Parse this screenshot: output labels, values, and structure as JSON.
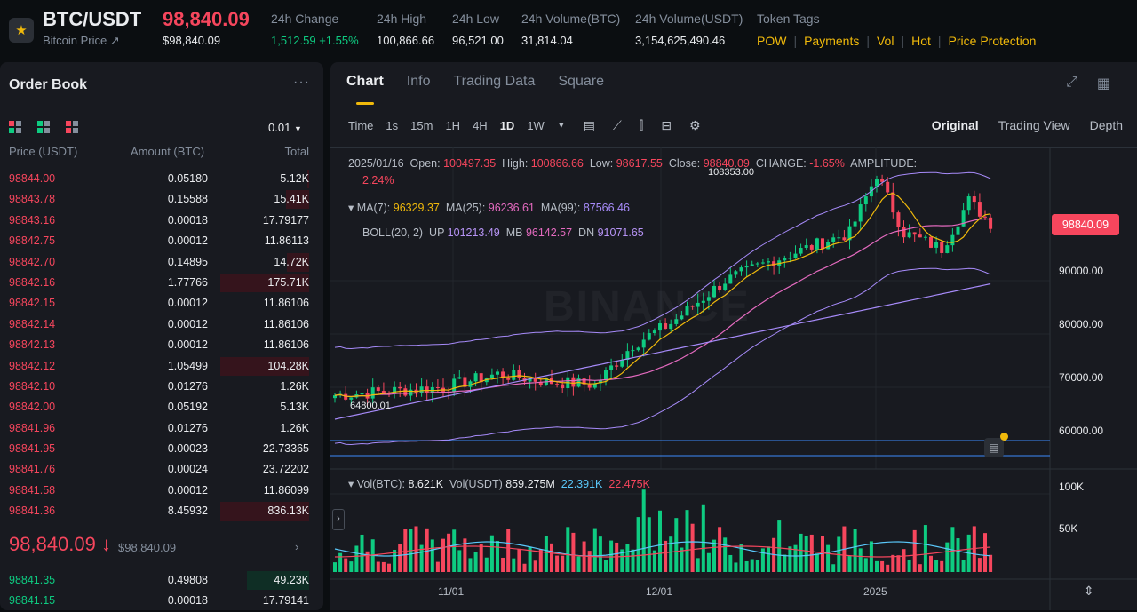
{
  "header": {
    "pair": "BTC/USDT",
    "sub": "Bitcoin Price ↗",
    "last_price": "98,840.09",
    "last_price_usd": "$98,840.09",
    "stats": [
      {
        "label": "24h Change",
        "value": "1,512.59 +1.55%",
        "positive": true
      },
      {
        "label": "24h High",
        "value": "100,866.66"
      },
      {
        "label": "24h Low",
        "value": "96,521.00"
      },
      {
        "label": "24h Volume(BTC)",
        "value": "31,814.04"
      },
      {
        "label": "24h Volume(USDT)",
        "value": "3,154,625,490.46"
      }
    ],
    "tags_label": "Token Tags",
    "tags": [
      "POW",
      "Payments",
      "Vol",
      "Hot",
      "Price Protection"
    ]
  },
  "orderbook": {
    "title": "Order Book",
    "more": "···",
    "precision": "0.01",
    "col_price": "Price (USDT)",
    "col_amount": "Amount (BTC)",
    "col_total": "Total",
    "asks": [
      {
        "price": "98844.00",
        "amount": "0.05180",
        "total": "5.12K",
        "depth": 0.02
      },
      {
        "price": "98843.78",
        "amount": "0.15588",
        "total": "15.41K",
        "depth": 0.26
      },
      {
        "price": "98843.16",
        "amount": "0.00018",
        "total": "17.79177",
        "depth": 0.0
      },
      {
        "price": "98842.75",
        "amount": "0.00012",
        "total": "11.86113",
        "depth": 0.0
      },
      {
        "price": "98842.70",
        "amount": "0.14895",
        "total": "14.72K",
        "depth": 0.25
      },
      {
        "price": "98842.16",
        "amount": "1.77766",
        "total": "175.71K",
        "depth": 1.0
      },
      {
        "price": "98842.15",
        "amount": "0.00012",
        "total": "11.86106",
        "depth": 0.0
      },
      {
        "price": "98842.14",
        "amount": "0.00012",
        "total": "11.86106",
        "depth": 0.0
      },
      {
        "price": "98842.13",
        "amount": "0.00012",
        "total": "11.86106",
        "depth": 0.0
      },
      {
        "price": "98842.12",
        "amount": "1.05499",
        "total": "104.28K",
        "depth": 1.0
      },
      {
        "price": "98842.10",
        "amount": "0.01276",
        "total": "1.26K",
        "depth": 0.0
      },
      {
        "price": "98842.00",
        "amount": "0.05192",
        "total": "5.13K",
        "depth": 0.0
      },
      {
        "price": "98841.96",
        "amount": "0.01276",
        "total": "1.26K",
        "depth": 0.0
      },
      {
        "price": "98841.95",
        "amount": "0.00023",
        "total": "22.73365",
        "depth": 0.0
      },
      {
        "price": "98841.76",
        "amount": "0.00024",
        "total": "23.72202",
        "depth": 0.0
      },
      {
        "price": "98841.58",
        "amount": "0.00012",
        "total": "11.86099",
        "depth": 0.0
      },
      {
        "price": "98841.36",
        "amount": "8.45932",
        "total": "836.13K",
        "depth": 1.0
      }
    ],
    "mid_price": "98,840.09 ↓",
    "mid_price_usd": "$98,840.09",
    "bids": [
      {
        "price": "98841.35",
        "amount": "0.49808",
        "total": "49.23K",
        "depth": 0.7
      },
      {
        "price": "98841.15",
        "amount": "0.00018",
        "total": "17.79141",
        "depth": 0.0
      }
    ]
  },
  "chart_panel": {
    "tabs": [
      "Chart",
      "Info",
      "Trading Data",
      "Square"
    ],
    "active_tab": "Chart",
    "intervals": [
      "Time",
      "1s",
      "15m",
      "1H",
      "4H",
      "1D",
      "1W"
    ],
    "active_interval": "1D",
    "views": [
      "Original",
      "Trading View",
      "Depth"
    ],
    "active_view": "Original",
    "ohlc": {
      "date": "2025/01/16",
      "open_label": "Open:",
      "open": "100497.35",
      "high_label": "High:",
      "high": "100866.66",
      "low_label": "Low:",
      "low": "98617.55",
      "close_label": "Close:",
      "close": "98840.09",
      "change_label": "CHANGE:",
      "change": "-1.65%",
      "amp_label": "AMPLITUDE:",
      "amp": "2.24%"
    },
    "ma": {
      "ma7_label": "MA(7):",
      "ma7": "96329.37",
      "ma25_label": "MA(25):",
      "ma25": "96236.61",
      "ma99_label": "MA(99):",
      "ma99": "87566.46"
    },
    "boll": {
      "label": "BOLL(20, 2)",
      "up_label": "UP",
      "up": "101213.49",
      "mb_label": "MB",
      "mb": "96142.57",
      "dn_label": "DN",
      "dn": "91071.65"
    },
    "y_ticks": [
      "90000.00",
      "80000.00",
      "70000.00",
      "60000.00"
    ],
    "current_price_tag": "98840.09",
    "max_label": "108353.00",
    "min_label": "64800.01",
    "vol": {
      "label_btc": "Vol(BTC):",
      "btc": "8.621K",
      "label_usdt": "Vol(USDT)",
      "usdt": "859.275M",
      "ma5": "22.391K",
      "ma10": "22.475K"
    },
    "vol_ticks": [
      "100K",
      "50K"
    ],
    "x_ticks": [
      "11/01",
      "12/01",
      "2025"
    ],
    "watermark": "BINANCE"
  },
  "colors": {
    "up": "#0ecb81",
    "down": "#f6465d",
    "accent": "#f0b90b"
  }
}
